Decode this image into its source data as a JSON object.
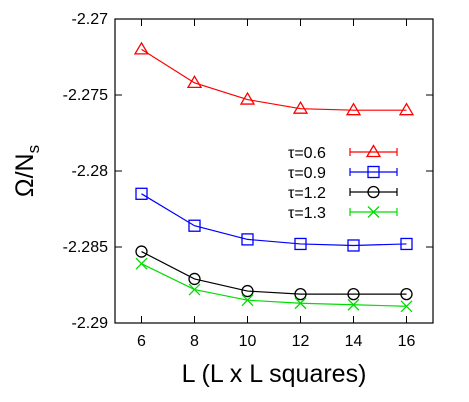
{
  "chart_data": {
    "type": "line",
    "title": "",
    "xlabel": "L (L x L squares)",
    "ylabel": "Ω/N",
    "ylabel_subscript": "s",
    "xlim": [
      5,
      17
    ],
    "ylim": [
      -2.29,
      -2.27
    ],
    "xticks": [
      6,
      8,
      10,
      12,
      14,
      16
    ],
    "yticks": [
      -2.29,
      -2.285,
      -2.28,
      -2.275,
      -2.27
    ],
    "ytick_labels": [
      "-2.29",
      "-2.285",
      "-2.28",
      "-2.275",
      "-2.27"
    ],
    "legend_position": "right",
    "grid": false,
    "x": [
      6,
      8,
      10,
      12,
      14,
      16
    ],
    "series": [
      {
        "name": "τ=0.6",
        "color": "#ff0000",
        "marker": "triangle",
        "values": [
          -2.272,
          -2.2742,
          -2.2753,
          -2.2759,
          -2.276,
          -2.276
        ]
      },
      {
        "name": "τ=0.9",
        "color": "#0000ff",
        "marker": "square",
        "values": [
          -2.2815,
          -2.2836,
          -2.2845,
          -2.2848,
          -2.2849,
          -2.2848
        ]
      },
      {
        "name": "τ=1.2",
        "color": "#000000",
        "marker": "circle",
        "values": [
          -2.2853,
          -2.2871,
          -2.2879,
          -2.2881,
          -2.2881,
          -2.2881
        ]
      },
      {
        "name": "τ=1.3",
        "color": "#00dd00",
        "marker": "x",
        "values": [
          -2.2861,
          -2.2878,
          -2.2885,
          -2.2887,
          -2.2888,
          -2.2889
        ]
      }
    ]
  }
}
